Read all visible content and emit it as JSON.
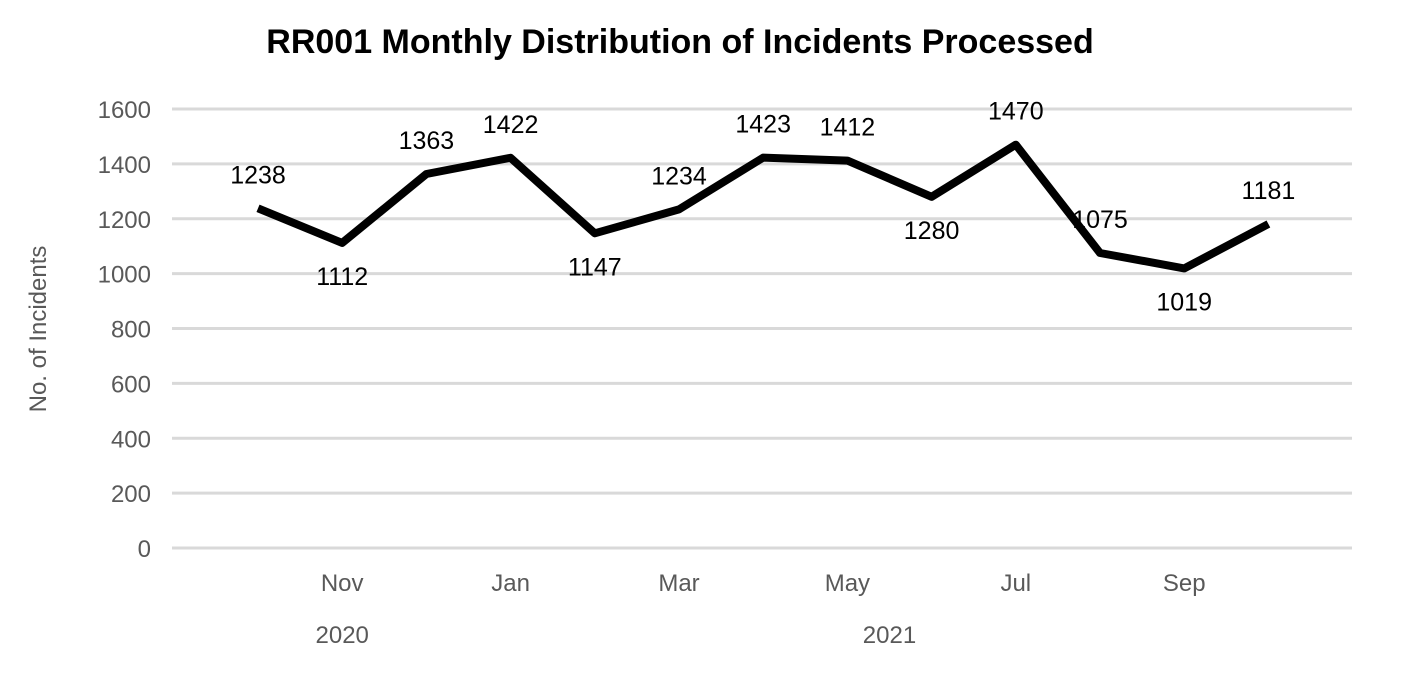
{
  "chart_data": {
    "type": "line",
    "title": "RR001 Monthly Distribution of Incidents Processed",
    "ylabel": "No. of Incidents",
    "xlabel": "",
    "ylim": [
      0,
      1600
    ],
    "yticks": [
      0,
      200,
      400,
      600,
      800,
      1000,
      1200,
      1400,
      1600
    ],
    "grid": true,
    "x": [
      "2020-10",
      "2020-11",
      "2020-12",
      "2021-01",
      "2021-02",
      "2021-03",
      "2021-04",
      "2021-05",
      "2021-06",
      "2021-07",
      "2021-08",
      "2021-09",
      "2021-10"
    ],
    "x_tick_labels": [
      {
        "x": "2020-11",
        "label": "Nov"
      },
      {
        "x": "2021-01",
        "label": "Jan"
      },
      {
        "x": "2021-03",
        "label": "Mar"
      },
      {
        "x": "2021-05",
        "label": "May"
      },
      {
        "x": "2021-07",
        "label": "Jul"
      },
      {
        "x": "2021-09",
        "label": "Sep"
      }
    ],
    "year_labels": [
      {
        "year": "2020",
        "months": [
          "2020-10",
          "2020-11",
          "2020-12"
        ]
      },
      {
        "year": "2021",
        "months": [
          "2021-01",
          "2021-02",
          "2021-03",
          "2021-04",
          "2021-05",
          "2021-06",
          "2021-07",
          "2021-08",
          "2021-09",
          "2021-10"
        ]
      }
    ],
    "series": [
      {
        "values": [
          1238,
          1112,
          1363,
          1422,
          1147,
          1234,
          1423,
          1412,
          1280,
          1470,
          1075,
          1019,
          1181
        ],
        "color": "#000000",
        "label_positions": [
          "above",
          "below",
          "above",
          "above",
          "below",
          "above",
          "above",
          "above",
          "below",
          "above",
          "above",
          "below",
          "above"
        ]
      }
    ]
  }
}
